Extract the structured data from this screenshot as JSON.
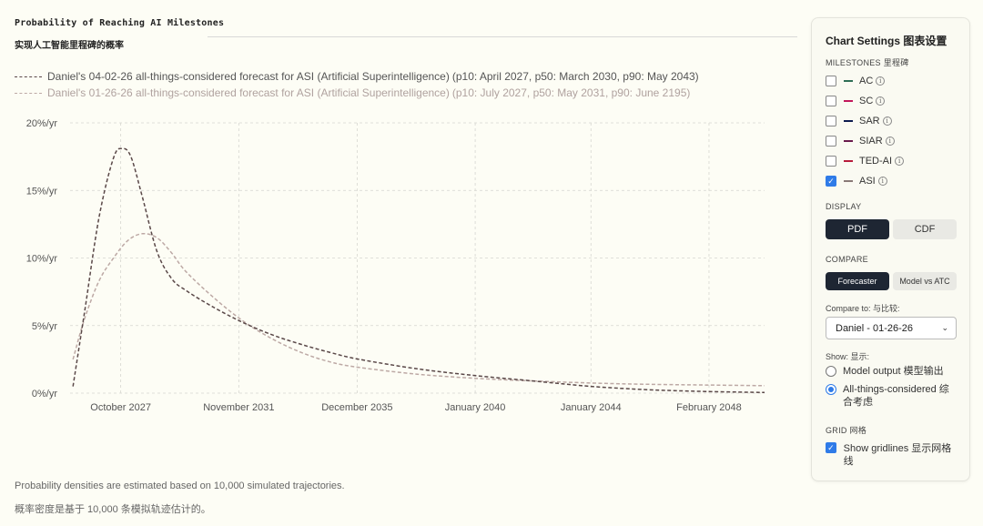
{
  "header": {
    "title": "Probability of Reaching AI Milestones",
    "subtitle": "实现人工智能里程碑的概率"
  },
  "legend": [
    {
      "label": "Daniel's 04-02-26 all-things-considered forecast for ASI (Artificial Superintelligence)",
      "suffix": "(p10: April 2027, p50: March 2030, p90: May 2043)",
      "color": "#5a4848"
    },
    {
      "label": "Daniel's 01-26-26 all-things-considered forecast for ASI (Artificial Superintelligence)",
      "suffix": "(p10: July 2027, p50: May 2031, p90: June 2195)",
      "color": "#bda9a5"
    }
  ],
  "chart_data": {
    "type": "line",
    "title": "Probability of Reaching AI Milestones",
    "xlabel": "",
    "ylabel": "",
    "y_ticks": [
      "0%/yr",
      "5%/yr",
      "10%/yr",
      "15%/yr",
      "20%/yr"
    ],
    "ylim": [
      0,
      20
    ],
    "x_ticks": [
      {
        "label": "October 2027",
        "value": 2027.75
      },
      {
        "label": "November 2031",
        "value": 2031.83
      },
      {
        "label": "December 2035",
        "value": 2035.92
      },
      {
        "label": "January 2040",
        "value": 2040.0
      },
      {
        "label": "January 2044",
        "value": 2044.0
      },
      {
        "label": "February 2048",
        "value": 2048.08
      }
    ],
    "xlim": [
      2026.0,
      2050.0
    ],
    "grid": true,
    "series": [
      {
        "name": "Daniel's 04-02-26 all-things-considered forecast for ASI (Artificial Superintelligence)",
        "color": "#5a4848",
        "x": [
          2026.1,
          2026.5,
          2027.0,
          2027.5,
          2027.8,
          2028.1,
          2028.5,
          2029.0,
          2029.5,
          2030.0,
          2031.0,
          2032.0,
          2033.0,
          2034.0,
          2035.0,
          2036.0,
          2038.0,
          2040.0,
          2042.0,
          2044.0,
          2046.0,
          2048.0,
          2050.0
        ],
        "y": [
          0.5,
          6.0,
          13.0,
          17.4,
          18.1,
          17.5,
          14.5,
          10.5,
          8.5,
          7.6,
          6.3,
          5.2,
          4.3,
          3.6,
          3.0,
          2.5,
          1.8,
          1.3,
          0.9,
          0.5,
          0.25,
          0.12,
          0.05
        ]
      },
      {
        "name": "Daniel's 01-26-26 all-things-considered forecast for ASI (Artificial Superintelligence)",
        "color": "#bda9a5",
        "x": [
          2026.1,
          2026.5,
          2027.0,
          2027.5,
          2028.0,
          2028.5,
          2029.0,
          2029.5,
          2030.0,
          2031.0,
          2032.0,
          2033.0,
          2034.0,
          2035.0,
          2036.0,
          2038.0,
          2040.0,
          2042.0,
          2044.0,
          2046.0,
          2048.0,
          2050.0
        ],
        "y": [
          2.5,
          5.5,
          8.3,
          10.0,
          11.3,
          11.8,
          11.5,
          10.4,
          9.0,
          7.0,
          5.3,
          4.0,
          3.0,
          2.3,
          1.9,
          1.4,
          1.1,
          0.9,
          0.75,
          0.65,
          0.6,
          0.55
        ]
      }
    ]
  },
  "footer": {
    "note_en": "Probability densities are estimated based on 10,000 simulated trajectories.",
    "note_zh": "概率密度是基于 10,000 条模拟轨迹估计的。"
  },
  "settings": {
    "title": "Chart Settings  图表设置",
    "milestones_label": "MILESTONES  里程碑",
    "milestones": [
      {
        "label": "AC",
        "color": "#2e6e55",
        "checked": false
      },
      {
        "label": "SC",
        "color": "#c2185b",
        "checked": false
      },
      {
        "label": "SAR",
        "color": "#0d1b4f",
        "checked": false
      },
      {
        "label": "SIAR",
        "color": "#6a1b4d",
        "checked": false
      },
      {
        "label": "TED-AI",
        "color": "#b71c3c",
        "checked": false
      },
      {
        "label": "ASI",
        "color": "#8a7a78",
        "checked": true
      }
    ],
    "display_label": "DISPLAY",
    "display_options": [
      "PDF",
      "CDF"
    ],
    "display_selected": "PDF",
    "compare_label": "COMPARE",
    "compare_options": [
      "Forecaster",
      "Model vs ATC"
    ],
    "compare_selected": "Forecaster",
    "compare_to_label": "Compare to:  与比较:",
    "compare_to_value": "Daniel - 01-26-26",
    "show_label": "Show:  显示:",
    "show_options": [
      {
        "label": "Model output  模型输出",
        "selected": false
      },
      {
        "label": "All-things-considered  综合考虑",
        "selected": true
      }
    ],
    "grid_label": "GRID  网格",
    "gridlines_label": "Show gridlines  显示网格线",
    "gridlines_checked": true,
    "check_glyph": "✓",
    "info_glyph": "i",
    "chevron_glyph": "⌄"
  }
}
